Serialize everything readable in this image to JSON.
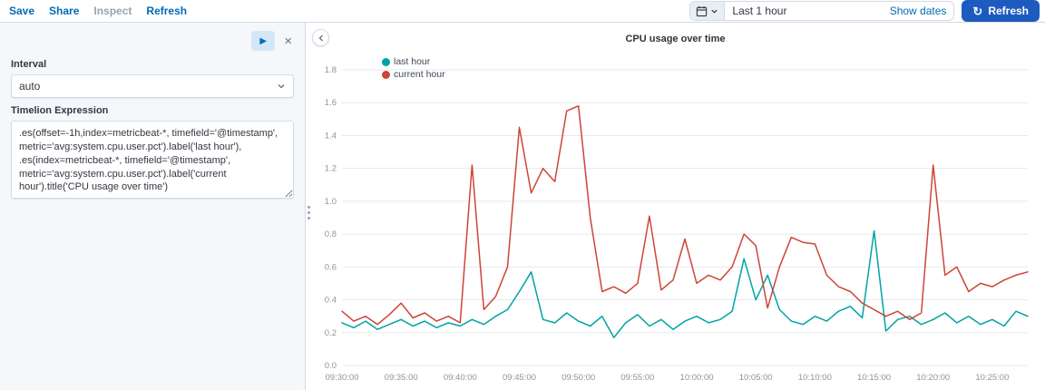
{
  "topbar": {
    "menu": [
      {
        "label": "Save",
        "enabled": true
      },
      {
        "label": "Share",
        "enabled": true
      },
      {
        "label": "Inspect",
        "enabled": false
      },
      {
        "label": "Refresh",
        "enabled": true
      }
    ],
    "datepicker": {
      "value": "Last 1 hour",
      "show_dates_label": "Show dates"
    },
    "refresh_button_label": "Refresh"
  },
  "sidebar": {
    "interval_label": "Interval",
    "interval_value": "auto",
    "expression_label": "Timelion Expression",
    "expression_value": ".es(offset=-1h,index=metricbeat-*, timefield='@timestamp', metric='avg:system.cpu.user.pct').label('last hour'),\n.es(index=metricbeat-*, timefield='@timestamp', metric='avg:system.cpu.user.pct').label('current hour').title('CPU usage over time')"
  },
  "colors": {
    "link_blue": "#006bb4",
    "refresh_button": "#1d5bc0",
    "panel_background": "#f5f7fa",
    "series_last_hour": "#00a3a4",
    "series_current_hour": "#ce4438"
  },
  "chart_data": {
    "type": "line",
    "title": "CPU usage over time",
    "xlabel": "",
    "ylabel": "",
    "ylim": [
      0,
      1.8
    ],
    "y_tick_step": 0.2,
    "x_tick_every": 5,
    "grid": "horizontal",
    "legend_position": "top-left",
    "categories": [
      "09:30:00",
      "09:31:00",
      "09:32:00",
      "09:33:00",
      "09:34:00",
      "09:35:00",
      "09:36:00",
      "09:37:00",
      "09:38:00",
      "09:39:00",
      "09:40:00",
      "09:41:00",
      "09:42:00",
      "09:43:00",
      "09:44:00",
      "09:45:00",
      "09:46:00",
      "09:47:00",
      "09:48:00",
      "09:49:00",
      "09:50:00",
      "09:51:00",
      "09:52:00",
      "09:53:00",
      "09:54:00",
      "09:55:00",
      "09:56:00",
      "09:57:00",
      "09:58:00",
      "09:59:00",
      "10:00:00",
      "10:01:00",
      "10:02:00",
      "10:03:00",
      "10:04:00",
      "10:05:00",
      "10:06:00",
      "10:07:00",
      "10:08:00",
      "10:09:00",
      "10:10:00",
      "10:11:00",
      "10:12:00",
      "10:13:00",
      "10:14:00",
      "10:15:00",
      "10:16:00",
      "10:17:00",
      "10:18:00",
      "10:19:00",
      "10:20:00",
      "10:21:00",
      "10:22:00",
      "10:23:00",
      "10:24:00",
      "10:25:00",
      "10:26:00",
      "10:27:00",
      "10:28:00"
    ],
    "series": [
      {
        "name": "last hour",
        "color": "#00a3a4",
        "values": [
          0.26,
          0.23,
          0.27,
          0.22,
          0.25,
          0.28,
          0.24,
          0.27,
          0.23,
          0.26,
          0.24,
          0.28,
          0.25,
          0.3,
          0.34,
          0.45,
          0.57,
          0.28,
          0.26,
          0.32,
          0.27,
          0.24,
          0.3,
          0.17,
          0.26,
          0.31,
          0.24,
          0.28,
          0.22,
          0.27,
          0.3,
          0.26,
          0.28,
          0.33,
          0.65,
          0.4,
          0.55,
          0.34,
          0.27,
          0.25,
          0.3,
          0.27,
          0.33,
          0.36,
          0.29,
          0.82,
          0.21,
          0.28,
          0.3,
          0.25,
          0.28,
          0.32,
          0.26,
          0.3,
          0.25,
          0.28,
          0.24,
          0.33,
          0.3
        ]
      },
      {
        "name": "current hour",
        "color": "#ce4438",
        "values": [
          0.33,
          0.27,
          0.3,
          0.25,
          0.31,
          0.38,
          0.29,
          0.32,
          0.27,
          0.3,
          0.26,
          1.22,
          0.34,
          0.42,
          0.6,
          1.45,
          1.05,
          1.2,
          1.12,
          1.55,
          1.58,
          0.9,
          0.45,
          0.48,
          0.44,
          0.5,
          0.91,
          0.46,
          0.52,
          0.77,
          0.5,
          0.55,
          0.52,
          0.6,
          0.8,
          0.73,
          0.35,
          0.6,
          0.78,
          0.75,
          0.74,
          0.55,
          0.48,
          0.45,
          0.38,
          0.34,
          0.3,
          0.33,
          0.28,
          0.32,
          1.22,
          0.55,
          0.6,
          0.45,
          0.5,
          0.48,
          0.52,
          0.55,
          0.57
        ]
      }
    ]
  }
}
